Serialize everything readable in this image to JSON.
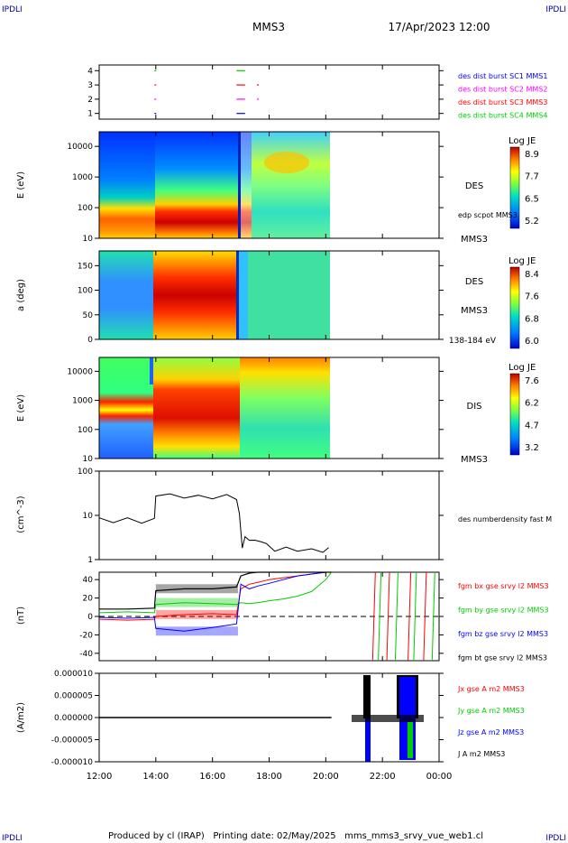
{
  "header": {
    "corner_left": "IPDLI",
    "corner_right": "IPDLI",
    "mission": "MMS3",
    "datetime": "17/Apr/2023 12:00"
  },
  "footer": {
    "text": "Produced by cl (IRAP)   Printing date: 02/May/2025   mms_mms3_srvy_vue_web1.cl",
    "corner_left": "IPDLI",
    "corner_right": "IPDLI"
  },
  "time_axis": {
    "ticks": [
      "12:00",
      "14:00",
      "16:00",
      "18:00",
      "20:00",
      "22:00",
      "00:00"
    ],
    "range_hours": [
      12,
      24
    ]
  },
  "chart_data": [
    {
      "type": "scatter",
      "panel": "burst",
      "yticks": [
        "1",
        "2",
        "3",
        "4"
      ],
      "ylim": [
        0.6,
        4.4
      ],
      "legend": [
        {
          "label": "des dist burst SC1 MMS1",
          "color": "#0000ff"
        },
        {
          "label": "des dist burst SC2 MMS2",
          "color": "#ff00ff"
        },
        {
          "label": "des dist burst SC3 MMS3",
          "color": "#ff0000"
        },
        {
          "label": "des dist burst SC4 MMS4",
          "color": "#00cc00"
        }
      ],
      "segments": [
        {
          "sc": 4,
          "t0": 13.95,
          "t1": 14.0
        },
        {
          "sc": 4,
          "t0": 16.85,
          "t1": 17.15
        },
        {
          "sc": 3,
          "t0": 13.95,
          "t1": 14.0
        },
        {
          "sc": 3,
          "t0": 16.85,
          "t1": 17.15
        },
        {
          "sc": 3,
          "t0": 17.57,
          "t1": 17.6
        },
        {
          "sc": 2,
          "t0": 13.95,
          "t1": 14.0
        },
        {
          "sc": 2,
          "t0": 16.85,
          "t1": 17.15
        },
        {
          "sc": 2,
          "t0": 17.57,
          "t1": 17.6
        },
        {
          "sc": 1,
          "t0": 13.95,
          "t1": 14.0
        },
        {
          "sc": 1,
          "t0": 16.85,
          "t1": 17.15
        }
      ]
    },
    {
      "type": "heatmap",
      "panel": "des_energy",
      "ylabel": "E (eV)",
      "yscale": "log",
      "yticks": [
        "10",
        "100",
        "1000",
        "10000"
      ],
      "ylim": [
        10,
        30000
      ],
      "label": "DES",
      "sublabel": "edp scpot MMS3",
      "bottom_label": "MMS3",
      "colorbar": {
        "title": "Log JE",
        "ticks": [
          "8.9",
          "7.7",
          "6.5",
          "5.2"
        ],
        "range": [
          5.2,
          8.9
        ]
      },
      "data_end": 20.2
    },
    {
      "type": "heatmap",
      "panel": "des_pitch",
      "ylabel": "a (deg)",
      "yticks": [
        "0",
        "50",
        "100",
        "150"
      ],
      "ylim": [
        0,
        180
      ],
      "label": "DES",
      "sublabel": "MMS3",
      "bottom_label": "138-184 eV",
      "colorbar": {
        "title": "Log JE",
        "ticks": [
          "8.4",
          "7.6",
          "6.8",
          "6.0"
        ],
        "range": [
          6.0,
          8.4
        ]
      },
      "data_end": 20.2
    },
    {
      "type": "heatmap",
      "panel": "dis_energy",
      "ylabel": "E (eV)",
      "yscale": "log",
      "yticks": [
        "10",
        "100",
        "1000",
        "10000"
      ],
      "ylim": [
        10,
        30000
      ],
      "label": "DIS",
      "bottom_label": "MMS3",
      "colorbar": {
        "title": "Log JE",
        "ticks": [
          "7.6",
          "6.2",
          "4.7",
          "3.2"
        ],
        "range": [
          3.2,
          7.6
        ]
      },
      "data_end": 20.2
    },
    {
      "type": "line",
      "panel": "density",
      "ylabel": "(cm^-3)",
      "yscale": "log",
      "yticks": [
        "1",
        "10",
        "100"
      ],
      "ylim": [
        1,
        100
      ],
      "legend": [
        {
          "label": "des numberdensity fast M",
          "color": "#000000"
        }
      ],
      "series": [
        {
          "color": "#000000",
          "x": [
            12.0,
            12.5,
            13.0,
            13.5,
            13.95,
            14.0,
            14.5,
            15.0,
            15.5,
            16.0,
            16.5,
            16.85,
            16.95,
            17.05,
            17.15,
            17.3,
            17.5,
            17.7,
            17.9,
            18.2,
            18.6,
            19.0,
            19.5,
            19.9,
            20.1
          ],
          "y": [
            8,
            7.5,
            8,
            7.3,
            7.8,
            30,
            28,
            27,
            26,
            26,
            27,
            25,
            10,
            2,
            3,
            3,
            2.5,
            2.8,
            2.1,
            1.7,
            1.75,
            1.7,
            1.6,
            1.6,
            1.7
          ]
        }
      ]
    },
    {
      "type": "line",
      "panel": "magnetic",
      "ylabel": "(nT)",
      "yticks": [
        "-40",
        "-20",
        "0",
        "20",
        "40"
      ],
      "ylim": [
        -48,
        48
      ],
      "legend": [
        {
          "label": "fgm bx gse srvy l2 MMS3",
          "color": "#ff0000"
        },
        {
          "label": "fgm by gse srvy l2 MMS3",
          "color": "#00cc00"
        },
        {
          "label": "fgm bz gse srvy l2 MMS3",
          "color": "#0000ff"
        },
        {
          "label": "fgm bt gse srvy l2 MMS3",
          "color": "#000000"
        }
      ],
      "series": [
        {
          "name": "bx",
          "color": "#ff0000",
          "x": [
            12.0,
            13.0,
            13.95,
            14.0,
            15.0,
            16.0,
            16.85,
            17.0,
            17.3,
            17.6,
            18.0,
            18.5,
            19.0,
            19.5,
            20.0,
            20.2
          ],
          "y": [
            -3,
            -4,
            -3,
            0,
            2,
            3,
            2,
            30,
            35,
            37,
            40,
            42,
            44,
            46,
            48,
            49
          ]
        },
        {
          "name": "by",
          "color": "#00cc00",
          "x": [
            12.0,
            13.0,
            13.95,
            14.0,
            15.0,
            16.0,
            16.85,
            17.0,
            17.3,
            17.6,
            18.0,
            18.5,
            19.0,
            19.5,
            20.0,
            20.2
          ],
          "y": [
            4,
            5,
            4,
            13,
            15,
            14,
            13,
            15,
            14,
            15,
            17,
            19,
            22,
            27,
            40,
            49
          ]
        },
        {
          "name": "bz",
          "color": "#0000ff",
          "x": [
            12.0,
            13.0,
            13.95,
            14.0,
            15.0,
            16.0,
            16.85,
            17.0,
            17.3,
            17.6,
            18.0,
            18.5,
            19.0,
            19.5,
            20.0,
            20.2
          ],
          "y": [
            -1,
            -2,
            -1,
            -13,
            -16,
            -12,
            -8,
            35,
            30,
            33,
            36,
            40,
            44,
            46,
            49,
            50
          ]
        },
        {
          "name": "bt",
          "color": "#000000",
          "x": [
            12.0,
            13.0,
            13.95,
            14.0,
            15.0,
            16.0,
            16.85,
            17.0,
            17.3,
            17.6,
            18.0,
            18.5,
            19.0,
            19.5,
            20.0,
            20.2
          ],
          "y": [
            8,
            8,
            9,
            28,
            30,
            30,
            32,
            44,
            47,
            48,
            48,
            49,
            49,
            50,
            50,
            50
          ]
        }
      ],
      "reference_line": {
        "y": 0,
        "style": "dashed"
      },
      "verticals": [
        {
          "t": 21.75,
          "color": "#ff0000"
        },
        {
          "t": 21.95,
          "color": "#00cc00"
        },
        {
          "t": 22.25,
          "color": "#ff0000"
        },
        {
          "t": 22.55,
          "color": "#00cc00"
        },
        {
          "t": 23.0,
          "color": "#ff0000"
        },
        {
          "t": 23.2,
          "color": "#00cc00"
        },
        {
          "t": 23.55,
          "color": "#ff0000"
        },
        {
          "t": 23.85,
          "color": "#00cc00"
        }
      ]
    },
    {
      "type": "line",
      "panel": "current",
      "ylabel": "(A/m2)",
      "yticks": [
        "0.000010",
        "0.000005",
        "0.000000",
        "-0.000005",
        "-0.000010"
      ],
      "ylim": [
        -1e-05,
        1e-05
      ],
      "legend": [
        {
          "label": "Jx gse A m2 MMS3",
          "color": "#ff0000"
        },
        {
          "label": "Jy gse A m2 MMS3",
          "color": "#00cc00"
        },
        {
          "label": "Jz gse A m2 MMS3",
          "color": "#0000ff"
        },
        {
          "label": "J A m2 MMS3",
          "color": "#000000"
        }
      ],
      "spikes": [
        {
          "t0": 21.6,
          "t1": 21.75,
          "top": 1e-05,
          "bottom": -1e-05
        },
        {
          "t0": 22.55,
          "t1": 22.7,
          "top": 3e-06,
          "bottom": -2e-06
        },
        {
          "t0": 22.9,
          "t1": 23.3,
          "top": 1e-05,
          "bottom": -1e-05
        }
      ]
    }
  ]
}
